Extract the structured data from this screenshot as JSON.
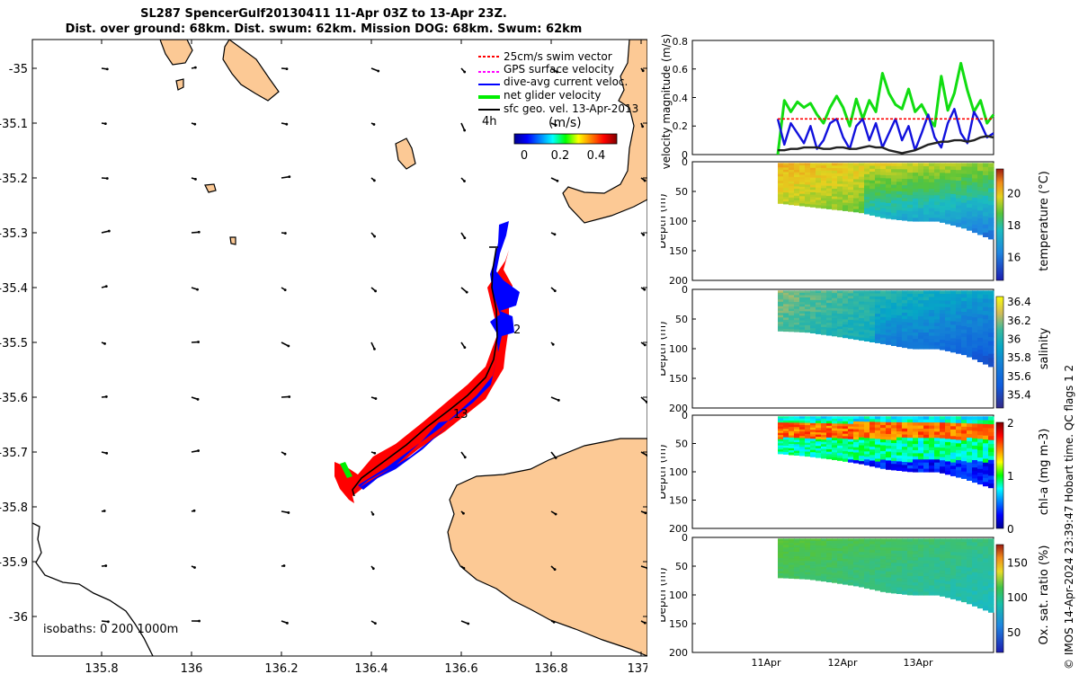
{
  "title": {
    "line1": "SL287 SpencerGulf20130411 11-Apr 03Z to 13-Apr 23Z.",
    "line2": "Dist. over ground: 68km. Dist. swum: 62km. Mission DOG: 68km. Swum: 62km"
  },
  "map": {
    "x_ticks": [
      "135.8",
      "136",
      "136.2",
      "136.4",
      "136.6",
      "136.8",
      "137"
    ],
    "y_ticks": [
      "-35",
      "-35.1",
      "-35.2",
      "-35.3",
      "-35.4",
      "-35.5",
      "-35.6",
      "-35.7",
      "-35.8",
      "-35.9",
      "-36"
    ],
    "legend": [
      {
        "label": "25cm/s swim vector",
        "color": "#ff0000"
      },
      {
        "label": "GPS surface velocity",
        "color": "#ff00ff"
      },
      {
        "label": "dive-avg current veloc.",
        "color": "#0000ff"
      },
      {
        "label": "net glider velocity",
        "color": "#00ee00"
      },
      {
        "label": "sfc geo. vel. 13-Apr-2013",
        "color": "#000000"
      }
    ],
    "interval_label": "4h",
    "colorbar_unit": "(m/s)",
    "colorbar_ticks": [
      "0",
      "0.2",
      "0.4"
    ],
    "track_labels": [
      "2",
      "13"
    ],
    "isobaths": "isobaths: 0   200  1000m",
    "land_color": "#fcc995"
  },
  "chart_data": [
    {
      "type": "line",
      "ylabel": "velocity magnitude (m/s)",
      "ylim": [
        0,
        0.8
      ],
      "y_ticks": [
        "0",
        "0.2",
        "0.4",
        "0.6",
        "0.8"
      ],
      "x_ticks": [
        "11Apr",
        "12Apr",
        "13Apr"
      ],
      "series": [
        {
          "name": "net glider velocity",
          "color": "#11dd11",
          "values": [
            0.0,
            0.38,
            0.3,
            0.37,
            0.33,
            0.36,
            0.28,
            0.22,
            0.33,
            0.41,
            0.33,
            0.2,
            0.39,
            0.25,
            0.38,
            0.3,
            0.57,
            0.43,
            0.35,
            0.32,
            0.46,
            0.3,
            0.35,
            0.26,
            0.2,
            0.55,
            0.31,
            0.43,
            0.64,
            0.45,
            0.3,
            0.38,
            0.22,
            0.28
          ]
        },
        {
          "name": "dive-avg current veloc.",
          "color": "#1111dd",
          "values": [
            0.25,
            0.07,
            0.22,
            0.15,
            0.08,
            0.2,
            0.04,
            0.1,
            0.22,
            0.25,
            0.12,
            0.04,
            0.2,
            0.25,
            0.1,
            0.22,
            0.05,
            0.15,
            0.25,
            0.1,
            0.2,
            0.03,
            0.15,
            0.28,
            0.12,
            0.05,
            0.22,
            0.32,
            0.15,
            0.08,
            0.3,
            0.22,
            0.12,
            0.15
          ]
        },
        {
          "name": "25cm/s swim vector",
          "color": "#ff0000",
          "values": [
            0.25,
            0.25,
            0.25,
            0.25,
            0.25,
            0.25,
            0.25,
            0.25,
            0.25,
            0.25,
            0.25,
            0.25,
            0.25,
            0.25,
            0.25,
            0.25,
            0.25,
            0.25,
            0.25,
            0.25,
            0.25,
            0.25,
            0.25,
            0.25,
            0.25,
            0.25,
            0.25,
            0.25,
            0.25,
            0.25,
            0.25,
            0.25,
            0.25,
            0.25
          ]
        },
        {
          "name": "sfc geo. vel.",
          "color": "#222222",
          "values": [
            0.03,
            0.03,
            0.04,
            0.04,
            0.05,
            0.05,
            0.05,
            0.04,
            0.04,
            0.05,
            0.05,
            0.04,
            0.04,
            0.05,
            0.06,
            0.05,
            0.05,
            0.03,
            0.02,
            0.01,
            0.02,
            0.03,
            0.05,
            0.07,
            0.08,
            0.09,
            0.09,
            0.1,
            0.1,
            0.09,
            0.1,
            0.12,
            0.13,
            0.12
          ]
        }
      ]
    },
    {
      "type": "heatmap",
      "variable": "temperature",
      "ylabel": "Depth (m)",
      "clabel": "temperature (°C)",
      "ylim": [
        200,
        0
      ],
      "y_ticks": [
        "0",
        "50",
        "100",
        "150",
        "200"
      ],
      "c_ticks": [
        "16",
        "18",
        "20"
      ],
      "crange": [
        14.5,
        21.5
      ],
      "palette": "parula"
    },
    {
      "type": "heatmap",
      "variable": "salinity",
      "ylabel": "Depth (m)",
      "clabel": "salinity",
      "ylim": [
        200,
        0
      ],
      "y_ticks": [
        "0",
        "50",
        "100",
        "150",
        "200"
      ],
      "c_ticks": [
        "35.4",
        "35.6",
        "35.8",
        "36",
        "36.2",
        "36.4"
      ],
      "crange": [
        35.25,
        36.45
      ],
      "palette": "parula"
    },
    {
      "type": "heatmap",
      "variable": "chl-a",
      "ylabel": "Depth (m)",
      "clabel": "chl-a (mg m-3)",
      "ylim": [
        200,
        0
      ],
      "y_ticks": [
        "0",
        "50",
        "100",
        "150",
        "200"
      ],
      "c_ticks": [
        "0",
        "1",
        "2"
      ],
      "crange": [
        0,
        2
      ],
      "palette": "jet"
    },
    {
      "type": "heatmap",
      "variable": "oxygen saturation",
      "ylabel": "Depth (m)",
      "clabel": "Ox. sat. ratio (%)",
      "ylim": [
        200,
        0
      ],
      "y_ticks": [
        "0",
        "50",
        "100",
        "150",
        "200"
      ],
      "c_ticks": [
        "50",
        "100",
        "150"
      ],
      "crange": [
        20,
        175
      ],
      "palette": "parula"
    }
  ],
  "credit": "© IMOS 14-Apr-2024 23:39:47 Hobart time. QC flags 1  2"
}
